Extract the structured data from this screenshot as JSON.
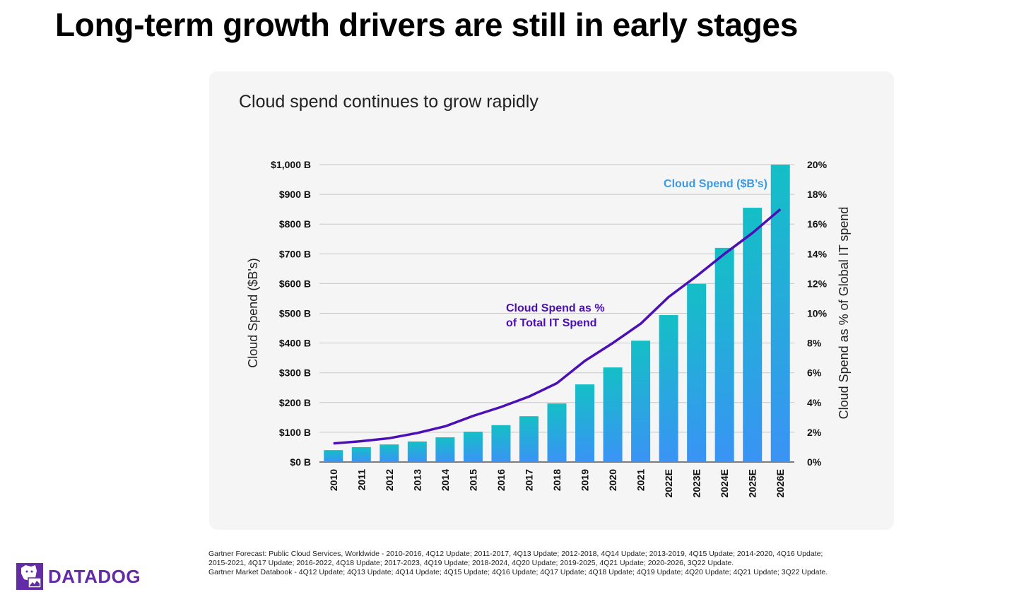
{
  "slide": {
    "title": "Long-term growth drivers are still in early stages",
    "footnote": [
      "Gartner Forecast: Public Cloud Services, Worldwide - 2010-2016, 4Q12 Update; 2011-2017, 4Q13 Update; 2012-2018, 4Q14 Update; 2013-2019, 4Q15 Update; 2014-2020, 4Q16 Update;",
      "2015-2021, 4Q17 Update; 2016-2022, 4Q18 Update; 2017-2023, 4Q19 Update; 2018-2024, 4Q20 Update; 2019-2025, 4Q21 Update; 2020-2026, 3Q22 Update.",
      "Gartner Market Databook - 4Q12 Update; 4Q13 Update; 4Q14 Update; 4Q15 Update; 4Q16 Update; 4Q17 Update; 4Q18 Update; 4Q19 Update; 4Q20 Update; 4Q21 Update;  3Q22 Update."
    ],
    "logo": {
      "text": "DATADOG",
      "color": "#632ca6"
    }
  },
  "chart_data": {
    "type": "bar+line",
    "title": "Cloud spend continues to grow rapidly",
    "categories": [
      "2010",
      "2011",
      "2012",
      "2013",
      "2014",
      "2015",
      "2016",
      "2017",
      "2018",
      "2019",
      "2020",
      "2021",
      "2022E",
      "2023E",
      "2024E",
      "2025E",
      "2026E"
    ],
    "ylabel": "Cloud Spend ($B's)",
    "y2label": "Cloud Spend as % of Global IT spend",
    "ylim": [
      0,
      1000
    ],
    "y2lim": [
      0,
      20
    ],
    "yticks": [
      "$0 B",
      "$100 B",
      "$200 B",
      "$300 B",
      "$400 B",
      "$500 B",
      "$600 B",
      "$700 B",
      "$800 B",
      "$900 B",
      "$1,000 B"
    ],
    "y2ticks": [
      "0%",
      "2%",
      "4%",
      "6%",
      "8%",
      "10%",
      "12%",
      "14%",
      "16%",
      "18%",
      "20%"
    ],
    "grid": true,
    "series": [
      {
        "name": "Cloud Spend ($B’s)",
        "type": "bar",
        "axis": "left",
        "color_top": "#14bfc6",
        "color_bottom": "#3a93f5",
        "values": [
          40,
          50,
          59,
          69,
          83,
          102,
          124,
          154,
          197,
          261,
          318,
          408,
          494,
          599,
          720,
          855,
          1000
        ]
      },
      {
        "name_lines": [
          "Cloud Spend as %",
          "of Total IT Spend"
        ],
        "type": "line",
        "axis": "right",
        "color": "#4b0fb5",
        "values": [
          1.25,
          1.4,
          1.6,
          1.95,
          2.4,
          3.1,
          3.7,
          4.4,
          5.3,
          6.8,
          8.0,
          9.3,
          11.1,
          12.5,
          14.0,
          15.4,
          17.0
        ]
      }
    ],
    "bar_label_color": "#3b9ae8"
  }
}
